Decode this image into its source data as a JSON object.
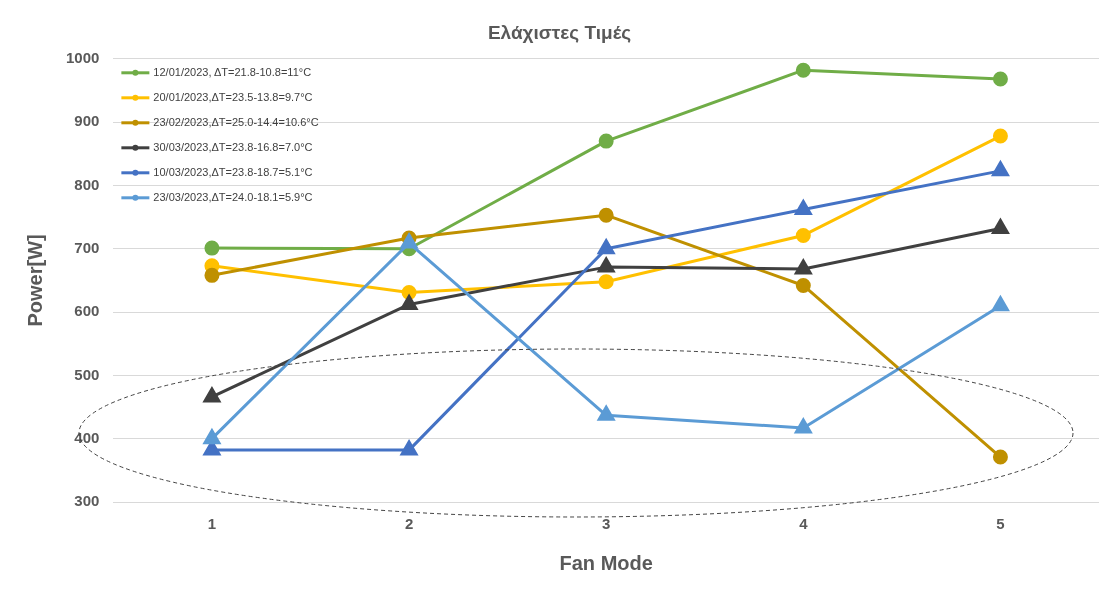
{
  "chart_data": {
    "type": "line",
    "title": "Ελάχιστες Τιμές",
    "xlabel": "Fan Mode",
    "ylabel": "Power[W]",
    "categories": [
      "1",
      "2",
      "3",
      "4",
      "5"
    ],
    "ylim": [
      300,
      1000
    ],
    "yticks": [
      300,
      400,
      500,
      600,
      700,
      800,
      900,
      1000
    ],
    "grid": "y",
    "legend": "top left",
    "line_style": "solid",
    "series": [
      {
        "name": "12/01/2023, ΔT=21.8-10.8=11°C",
        "color": "#70ad47",
        "marker": "circle",
        "values": [
          701,
          700,
          870,
          982,
          968
        ]
      },
      {
        "name": "20/01/2023,ΔT=23.5-13.8=9.7°C",
        "color": "#ffc000",
        "marker": "circle",
        "values": [
          673,
          631,
          648,
          721,
          878
        ]
      },
      {
        "name": "23/02/2023,ΔT=25.0-14.4=10.6°C",
        "color": "#bf9000",
        "marker": "circle",
        "values": [
          658,
          717,
          753,
          642,
          371
        ]
      },
      {
        "name": "30/03/2023,ΔT=23.8-16.8=7.0°C",
        "color": "#404040",
        "marker": "triangle",
        "values": [
          466,
          612,
          671,
          668,
          732
        ]
      },
      {
        "name": "10/03/2023,ΔT=23.8-18.7=5.1°C",
        "color": "#4472c4",
        "marker": "triangle",
        "values": [
          382,
          382,
          700,
          762,
          823
        ]
      },
      {
        "name": "23/03/2023,ΔT=24.0-18.1=5.9°C",
        "color": "#5b9bd5",
        "marker": "triangle",
        "values": [
          400,
          709,
          437,
          417,
          610
        ]
      }
    ]
  }
}
